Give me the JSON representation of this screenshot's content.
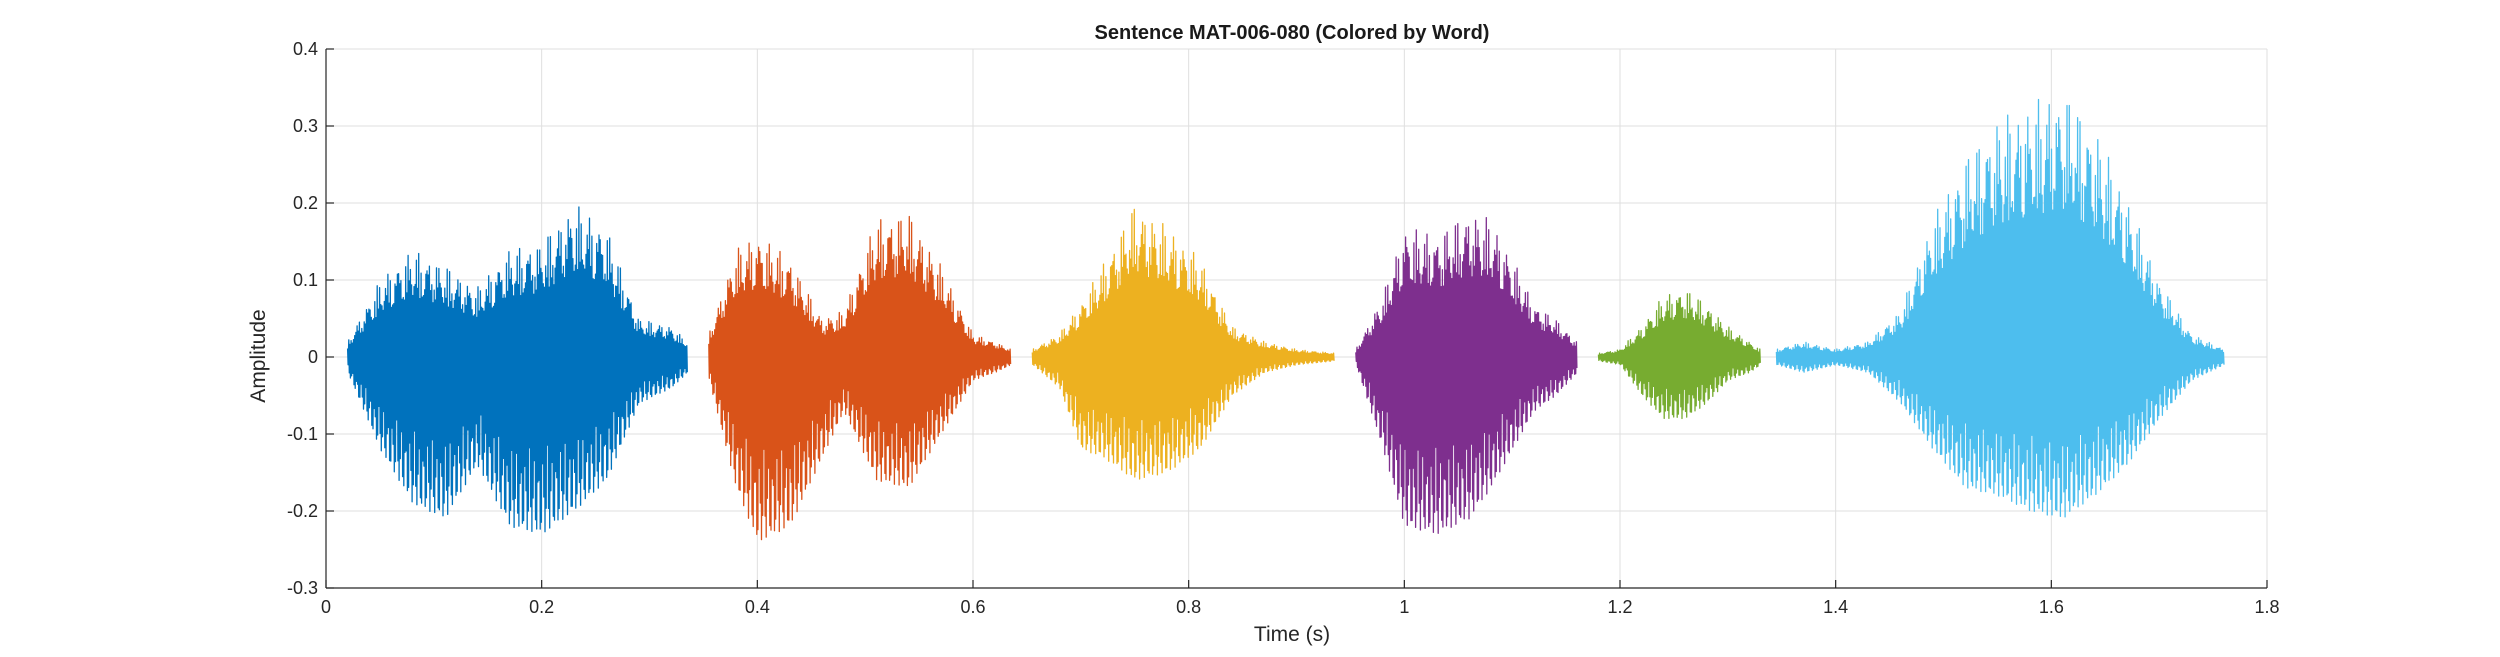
{
  "chart_data": {
    "type": "line",
    "title": "Sentence MAT-006-080 (Colored by Word)",
    "xlabel": "Time (s)",
    "ylabel": "Amplitude",
    "xlim": [
      0,
      1.8
    ],
    "ylim": [
      -0.3,
      0.4
    ],
    "xticks": [
      0,
      0.2,
      0.4,
      0.6,
      0.8,
      1,
      1.2,
      1.4,
      1.6,
      1.8
    ],
    "xtick_labels": [
      "0",
      "0.2",
      "0.4",
      "0.6",
      "0.8",
      "1",
      "1.2",
      "1.4",
      "1.6",
      "1.8"
    ],
    "yticks": [
      -0.3,
      -0.2,
      -0.1,
      0,
      0.1,
      0.2,
      0.3,
      0.4
    ],
    "ytick_labels": [
      "-0.3",
      "-0.2",
      "-0.1",
      "0",
      "0.1",
      "0.2",
      "0.3",
      "0.4"
    ],
    "grid": true,
    "series": [
      {
        "color": "#0072BD",
        "segments": [
          {
            "x": [
              0.02,
              0.05,
              0.08,
              0.11,
              0.14,
              0.17,
              0.2,
              0.23,
              0.26,
              0.29,
              0.32,
              0.335
            ],
            "upper": [
              0.02,
              0.1,
              0.14,
              0.12,
              0.09,
              0.14,
              0.15,
              0.2,
              0.17,
              0.05,
              0.04,
              0.02
            ],
            "lower": [
              -0.02,
              -0.12,
              -0.19,
              -0.21,
              -0.14,
              -0.22,
              -0.23,
              -0.2,
              -0.16,
              -0.06,
              -0.04,
              -0.02
            ]
          }
        ]
      },
      {
        "color": "#D95319",
        "segments": [
          {
            "x": [
              0.355,
              0.38,
              0.4,
              0.43,
              0.46,
              0.48,
              0.51,
              0.54,
              0.57,
              0.6,
              0.62,
              0.635
            ],
            "upper": [
              0.03,
              0.14,
              0.16,
              0.13,
              0.05,
              0.06,
              0.18,
              0.19,
              0.12,
              0.03,
              0.02,
              0.01
            ],
            "lower": [
              -0.03,
              -0.17,
              -0.24,
              -0.22,
              -0.13,
              -0.07,
              -0.16,
              -0.17,
              -0.1,
              -0.03,
              -0.02,
              -0.01
            ]
          }
        ]
      },
      {
        "color": "#EDB120",
        "segments": [
          {
            "x": [
              0.655,
              0.68,
              0.7,
              0.72,
              0.75,
              0.78,
              0.81,
              0.84,
              0.87,
              0.9,
              0.935
            ],
            "upper": [
              0.01,
              0.03,
              0.07,
              0.12,
              0.2,
              0.17,
              0.13,
              0.04,
              0.02,
              0.01,
              0.005
            ],
            "lower": [
              -0.01,
              -0.04,
              -0.12,
              -0.13,
              -0.16,
              -0.15,
              -0.12,
              -0.05,
              -0.02,
              -0.01,
              -0.005
            ]
          }
        ]
      },
      {
        "color": "#7E2F8E",
        "segments": [
          {
            "x": [
              0.955,
              0.98,
              1.0,
              1.03,
              1.06,
              1.08,
              1.1,
              1.12,
              1.14,
              1.16
            ],
            "upper": [
              0.01,
              0.08,
              0.17,
              0.16,
              0.19,
              0.18,
              0.13,
              0.07,
              0.05,
              0.02
            ],
            "lower": [
              -0.01,
              -0.12,
              -0.22,
              -0.23,
              -0.21,
              -0.17,
              -0.12,
              -0.07,
              -0.05,
              -0.02
            ]
          }
        ]
      },
      {
        "color": "#77AC30",
        "segments": [
          {
            "x": [
              1.18,
              1.2,
              1.22,
              1.24,
              1.26,
              1.28,
              1.3,
              1.32,
              1.33
            ],
            "upper": [
              0.005,
              0.01,
              0.04,
              0.08,
              0.09,
              0.07,
              0.04,
              0.02,
              0.01
            ],
            "lower": [
              -0.005,
              -0.01,
              -0.05,
              -0.08,
              -0.08,
              -0.06,
              -0.03,
              -0.02,
              -0.01
            ]
          }
        ]
      },
      {
        "color": "#4DBEEE",
        "segments": [
          {
            "x": [
              1.345,
              1.37,
              1.4,
              1.43,
              1.46,
              1.49,
              1.52,
              1.55,
              1.58,
              1.61,
              1.64,
              1.67,
              1.7,
              1.73,
              1.76
            ],
            "upper": [
              0.01,
              0.02,
              0.01,
              0.02,
              0.06,
              0.18,
              0.26,
              0.31,
              0.33,
              0.35,
              0.3,
              0.21,
              0.1,
              0.03,
              0.01
            ],
            "lower": [
              -0.01,
              -0.02,
              -0.01,
              -0.02,
              -0.06,
              -0.12,
              -0.17,
              -0.18,
              -0.2,
              -0.21,
              -0.18,
              -0.14,
              -0.08,
              -0.03,
              -0.01
            ]
          }
        ]
      }
    ]
  }
}
